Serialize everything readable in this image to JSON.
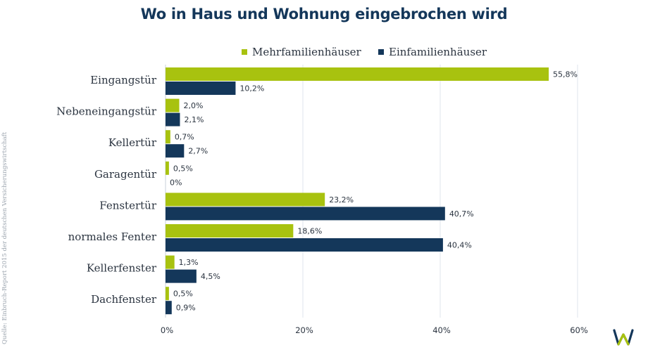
{
  "chart_data": {
    "type": "bar",
    "orientation": "horizontal",
    "title": "Wo in Haus und Wohnung eingebrochen wird",
    "categories": [
      "Eingangstür",
      "Nebeneingangstür",
      "Kellertür",
      "Garagentür",
      "Fenstertür",
      "normales Fenter",
      "Kellerfenster",
      "Dachfenster"
    ],
    "series": [
      {
        "name": "Mehrfamilienhäuser",
        "color": "#a8c20f",
        "values": [
          55.8,
          2.0,
          0.7,
          0.5,
          23.2,
          18.6,
          1.3,
          0.5
        ],
        "labels": [
          "55,8%",
          "2,0%",
          "0,7%",
          "0,5%",
          "23,2%",
          "18,6%",
          "1,3%",
          "0,5%"
        ]
      },
      {
        "name": "Einfamilienhäuser",
        "color": "#14375a",
        "values": [
          10.2,
          2.1,
          2.7,
          0,
          40.7,
          40.4,
          4.5,
          0.9
        ],
        "labels": [
          "10,2%",
          "2,1%",
          "2,7%",
          "0%",
          "40,7%",
          "40,4%",
          "4,5%",
          "0,9%"
        ]
      }
    ],
    "xlim": [
      0,
      60
    ],
    "xticks": [
      0,
      20,
      40,
      60
    ],
    "xtick_labels": [
      "0%",
      "20%",
      "40%",
      "60%"
    ],
    "grid": true,
    "legend_position": "top-right"
  },
  "source": "Quelle: Einbruch-Report 2015 der deutschen Versicherungswirtschaft",
  "colors": {
    "title": "#14375a",
    "grid": "#dfe6ec",
    "text": "#2b3440"
  },
  "logo_icon": "w-logo-icon"
}
